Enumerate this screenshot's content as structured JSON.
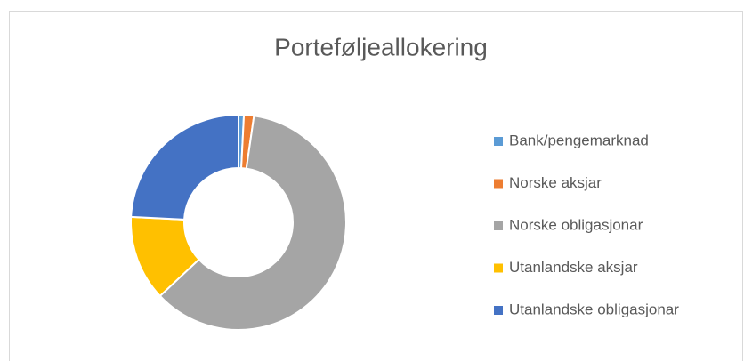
{
  "chart_data": {
    "type": "donut",
    "title": "Porteføljeallokering",
    "categories": [
      "Bank/pengemarknad",
      "Norske aksjar",
      "Norske obligasjonar",
      "Utanlandske aksjar",
      "Utanlandske obligasjonar"
    ],
    "values": [
      0.8,
      1.5,
      60.7,
      12.8,
      24.2
    ],
    "colors": [
      "#5b9bd5",
      "#ed7d31",
      "#a5a5a5",
      "#ffc000",
      "#4472c4"
    ],
    "legend": "right"
  }
}
